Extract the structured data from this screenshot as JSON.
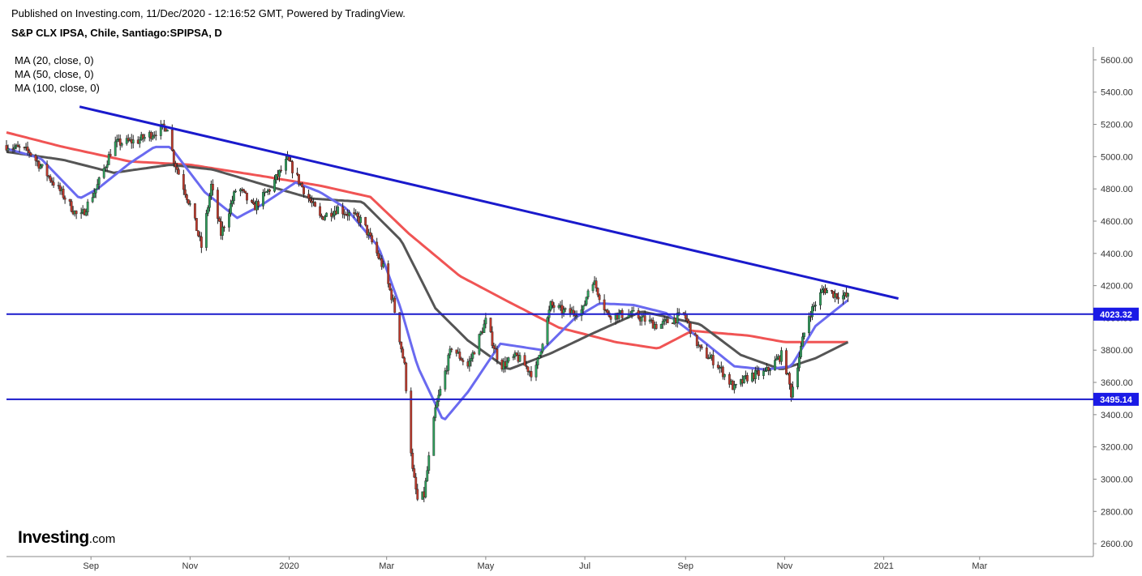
{
  "header": {
    "published": "Published on Investing.com, 11/Dec/2020 - 12:16:52 GMT, Powered by TradingView.",
    "instrument": "S&P CLX IPSA, Chile, Santiago:SPIPSA, D"
  },
  "legend": [
    "MA (20, close, 0)",
    "MA (50, close, 0)",
    "MA (100, close, 0)"
  ],
  "brand": {
    "name": "Investing",
    "suffix": ".com"
  },
  "colors": {
    "up": "#2e9e5b",
    "down": "#c0392b",
    "ma20": "#6a6af0",
    "ma50": "#555555",
    "ma100": "#f05454",
    "trend": "#1a1acc",
    "level": "#1a1acc",
    "label_bg": "#1a1ae6"
  },
  "chart_data": {
    "type": "line",
    "title": "S&P CLX IPSA, Chile, Santiago:SPIPSA, D",
    "ylim": [
      2520,
      5680
    ],
    "y_ticks": [
      "5600.00",
      "5400.00",
      "5200.00",
      "5000.00",
      "4800.00",
      "4600.00",
      "4400.00",
      "4200.00",
      "4000.00",
      "3800.00",
      "3600.00",
      "3400.00",
      "3200.00",
      "3000.00",
      "2800.00",
      "2600.00"
    ],
    "x_ticks": [
      "Sep",
      "Nov",
      "2020",
      "Mar",
      "May",
      "Jul",
      "Sep",
      "Nov",
      "2021",
      "Mar"
    ],
    "x_tick_dates": [
      "2019-09-01",
      "2019-11-01",
      "2020-01-01",
      "2020-03-01",
      "2020-05-01",
      "2020-07-01",
      "2020-09-01",
      "2020-11-01",
      "2021-01-01",
      "2021-03-01"
    ],
    "xlim": [
      "2019-07-11",
      "2021-05-10"
    ],
    "series": [
      {
        "name": "SPIPSA close",
        "x": [
          "2019-07-11",
          "2019-07-25",
          "2019-08-05",
          "2019-08-15",
          "2019-08-25",
          "2019-09-05",
          "2019-09-15",
          "2019-09-30",
          "2019-10-10",
          "2019-10-18",
          "2019-10-22",
          "2019-11-01",
          "2019-11-08",
          "2019-11-14",
          "2019-11-20",
          "2019-11-30",
          "2019-12-10",
          "2019-12-20",
          "2019-12-31",
          "2020-01-08",
          "2020-01-20",
          "2020-01-31",
          "2020-02-15",
          "2020-02-28",
          "2020-03-05",
          "2020-03-12",
          "2020-03-17",
          "2020-03-20",
          "2020-03-24",
          "2020-03-31",
          "2020-04-10",
          "2020-04-20",
          "2020-05-01",
          "2020-05-10",
          "2020-05-20",
          "2020-05-31",
          "2020-06-10",
          "2020-06-20",
          "2020-06-30",
          "2020-07-05",
          "2020-07-15",
          "2020-07-31",
          "2020-08-15",
          "2020-08-31",
          "2020-09-10",
          "2020-09-20",
          "2020-10-01",
          "2020-10-10",
          "2020-10-20",
          "2020-10-31",
          "2020-11-05",
          "2020-11-15",
          "2020-11-25",
          "2020-12-01",
          "2020-12-10"
        ],
        "values": [
          5070,
          5030,
          4890,
          4760,
          4610,
          4820,
          5080,
          5100,
          5150,
          5190,
          4980,
          4700,
          4440,
          4820,
          4520,
          4820,
          4680,
          4800,
          4980,
          4830,
          4620,
          4680,
          4600,
          4310,
          4100,
          3700,
          3050,
          2870,
          2900,
          3430,
          3820,
          3700,
          3980,
          3700,
          3760,
          3640,
          4080,
          4030,
          4050,
          4260,
          4020,
          4020,
          3950,
          4020,
          3800,
          3720,
          3560,
          3640,
          3660,
          3780,
          3530,
          4000,
          4180,
          4150,
          4130
        ]
      },
      {
        "name": "MA 20",
        "x": [
          "2019-07-11",
          "2019-08-01",
          "2019-08-25",
          "2019-09-05",
          "2019-09-25",
          "2019-10-10",
          "2019-10-20",
          "2019-11-10",
          "2019-11-30",
          "2019-12-15",
          "2020-01-05",
          "2020-01-20",
          "2020-02-05",
          "2020-02-25",
          "2020-03-10",
          "2020-03-20",
          "2020-04-05",
          "2020-04-20",
          "2020-05-10",
          "2020-06-05",
          "2020-06-25",
          "2020-07-10",
          "2020-07-31",
          "2020-08-20",
          "2020-09-10",
          "2020-10-01",
          "2020-10-20",
          "2020-11-05",
          "2020-11-20",
          "2020-12-10"
        ],
        "values": [
          5050,
          4990,
          4740,
          4800,
          4960,
          5060,
          5060,
          4780,
          4620,
          4700,
          4840,
          4780,
          4680,
          4440,
          4050,
          3700,
          3360,
          3540,
          3840,
          3800,
          4000,
          4090,
          4080,
          4030,
          3870,
          3700,
          3680,
          3700,
          3950,
          4110
        ]
      },
      {
        "name": "MA 50",
        "x": [
          "2019-07-11",
          "2019-08-15",
          "2019-09-15",
          "2019-10-20",
          "2019-11-15",
          "2019-12-15",
          "2020-01-15",
          "2020-02-15",
          "2020-03-10",
          "2020-03-31",
          "2020-04-20",
          "2020-05-15",
          "2020-06-10",
          "2020-07-05",
          "2020-08-05",
          "2020-09-10",
          "2020-10-05",
          "2020-10-30",
          "2020-11-20",
          "2020-12-10"
        ],
        "values": [
          5030,
          4980,
          4900,
          4950,
          4920,
          4830,
          4740,
          4720,
          4480,
          4060,
          3860,
          3680,
          3780,
          3900,
          4040,
          3960,
          3770,
          3680,
          3750,
          3850
        ]
      },
      {
        "name": "MA 100",
        "x": [
          "2019-07-11",
          "2019-08-15",
          "2019-09-25",
          "2019-11-01",
          "2019-12-15",
          "2020-01-20",
          "2020-02-20",
          "2020-03-15",
          "2020-04-15",
          "2020-05-15",
          "2020-06-15",
          "2020-07-20",
          "2020-08-15",
          "2020-09-05",
          "2020-10-10",
          "2020-11-01",
          "2020-12-10"
        ],
        "values": [
          5150,
          5060,
          4970,
          4950,
          4880,
          4820,
          4750,
          4520,
          4260,
          4100,
          3940,
          3850,
          3810,
          3920,
          3890,
          3850,
          3850
        ]
      }
    ],
    "trendline": {
      "x": [
        "2019-08-25",
        "2021-01-10"
      ],
      "values": [
        5310,
        4120
      ]
    },
    "h_levels": [
      {
        "value": 4023.32,
        "label": "4023.32"
      },
      {
        "value": 3495.14,
        "label": "3495.14"
      }
    ]
  }
}
